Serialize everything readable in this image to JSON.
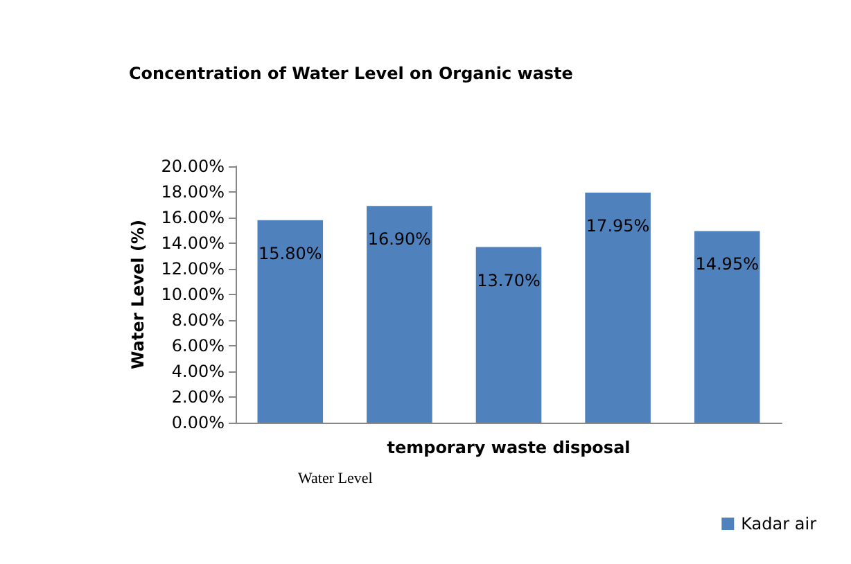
{
  "chart_data": {
    "type": "bar",
    "title": "Concentration of Water Level on Organic waste",
    "xlabel": "temporary waste disposal",
    "ylabel": "Water Level (%)",
    "annotations": [
      "Water Level"
    ],
    "categories": [
      null,
      null,
      null,
      null,
      null
    ],
    "series": [
      {
        "name": "Kadar air",
        "color": "#4f81bd",
        "values": [
          15.8,
          16.9,
          13.7,
          17.95,
          14.95
        ],
        "value_labels": [
          "15.80%",
          "16.90%",
          "13.70%",
          "17.95%",
          "14.95%"
        ]
      }
    ],
    "ylim": [
      0,
      20
    ],
    "yticks": [
      {
        "value": 0,
        "label": "0.00%"
      },
      {
        "value": 2,
        "label": "2.00%"
      },
      {
        "value": 4,
        "label": "4.00%"
      },
      {
        "value": 6,
        "label": "6.00%"
      },
      {
        "value": 8,
        "label": "8.00%"
      },
      {
        "value": 10,
        "label": "10.00%"
      },
      {
        "value": 12,
        "label": "12.00%"
      },
      {
        "value": 14,
        "label": "14.00%"
      },
      {
        "value": 16,
        "label": "16.00%"
      },
      {
        "value": 18,
        "label": "18.00%"
      },
      {
        "value": 20,
        "label": "20.00%"
      }
    ],
    "grid": false,
    "legend": "bottom right"
  }
}
